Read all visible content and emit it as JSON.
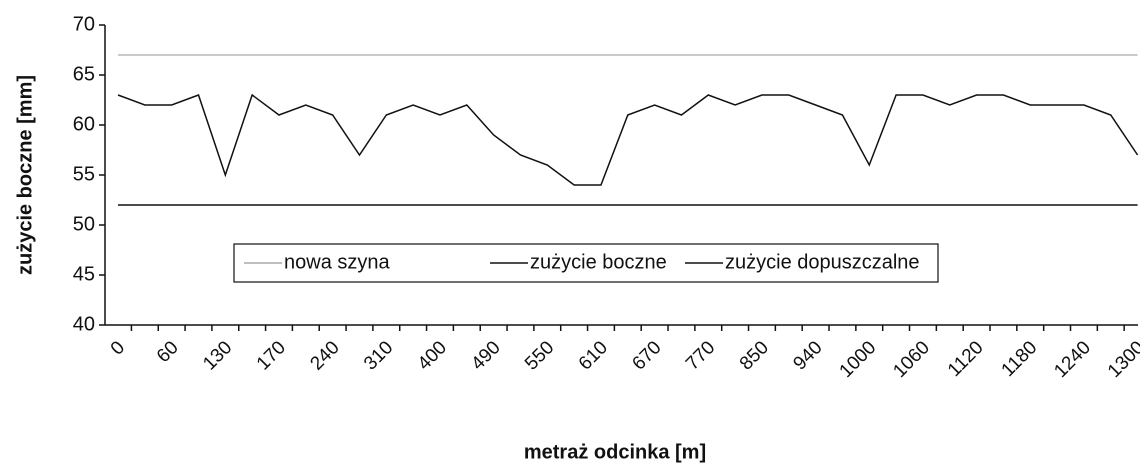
{
  "chart_data": {
    "type": "line",
    "xlabel": "metraż odcinka [m]",
    "ylabel": "zużycie boczne [mm]",
    "categories": [
      "0",
      null,
      "60",
      null,
      "130",
      null,
      "170",
      null,
      "240",
      null,
      "310",
      null,
      "400",
      null,
      "490",
      null,
      "550",
      null,
      "610",
      null,
      "670",
      null,
      "770",
      null,
      "850",
      null,
      "940",
      null,
      "1000",
      null,
      "1060",
      null,
      "1120",
      null,
      "1180",
      null,
      "1240",
      null,
      "1300"
    ],
    "series": [
      {
        "name": "nowa szyna",
        "color": "#aaaaaa",
        "values": [
          67,
          67,
          67,
          67,
          67,
          67,
          67,
          67,
          67,
          67,
          67,
          67,
          67,
          67,
          67,
          67,
          67,
          67,
          67,
          67,
          67,
          67,
          67,
          67,
          67,
          67,
          67,
          67,
          67,
          67,
          67,
          67,
          67,
          67,
          67,
          67,
          67,
          67,
          67
        ]
      },
      {
        "name": "zużycie boczne",
        "color": "#111111",
        "values": [
          63,
          62,
          62,
          63,
          55,
          63,
          61,
          62,
          61,
          57,
          61,
          62,
          61,
          62,
          59,
          57,
          56,
          54,
          54,
          61,
          62,
          61,
          63,
          62,
          63,
          63,
          62,
          61,
          56,
          63,
          63,
          62,
          63,
          63,
          62,
          62,
          62,
          61,
          57
        ]
      },
      {
        "name": "zużycie dopuszczalne",
        "color": "#111111",
        "values": [
          52,
          52,
          52,
          52,
          52,
          52,
          52,
          52,
          52,
          52,
          52,
          52,
          52,
          52,
          52,
          52,
          52,
          52,
          52,
          52,
          52,
          52,
          52,
          52,
          52,
          52,
          52,
          52,
          52,
          52,
          52,
          52,
          52,
          52,
          52,
          52,
          52,
          52,
          52
        ]
      }
    ],
    "ylim": [
      40,
      70
    ],
    "yticks": [
      40,
      45,
      50,
      55,
      60,
      65,
      70
    ]
  }
}
